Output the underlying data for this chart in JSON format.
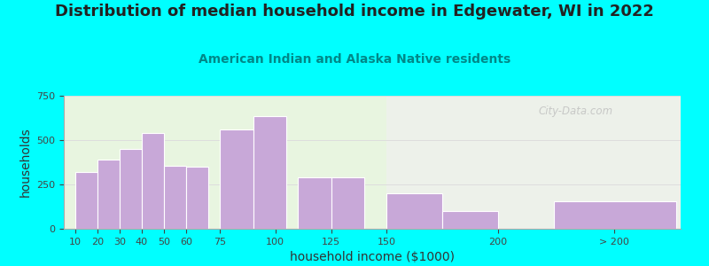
{
  "title": "Distribution of median household income in Edgewater, WI in 2022",
  "subtitle": "American Indian and Alaska Native residents",
  "xlabel": "household income ($1000)",
  "ylabel": "households",
  "bar_values": [
    320,
    390,
    450,
    540,
    355,
    350,
    560,
    635,
    290,
    290,
    200,
    100,
    155
  ],
  "bar_lefts": [
    10,
    20,
    30,
    40,
    50,
    60,
    75,
    90,
    110,
    125,
    150,
    175,
    225
  ],
  "bar_widths": [
    10,
    10,
    10,
    10,
    10,
    10,
    15,
    15,
    15,
    15,
    25,
    25,
    55
  ],
  "bar_color": "#C8A8D8",
  "bar_edgecolor": "#ffffff",
  "ylim": [
    0,
    750
  ],
  "yticks": [
    0,
    250,
    500,
    750
  ],
  "xlim_left": 5,
  "xlim_right": 282,
  "bg_outer": "#00FFFF",
  "bg_plot": "#E8F5E0",
  "title_fontsize": 13,
  "title_color": "#222222",
  "subtitle_fontsize": 10,
  "subtitle_color": "#008888",
  "axis_label_fontsize": 10,
  "tick_fontsize": 8,
  "watermark": "City-Data.com",
  "xtick_positions": [
    10,
    20,
    30,
    40,
    50,
    60,
    75,
    100,
    125,
    150,
    200,
    252
  ],
  "xtick_labels": [
    "10",
    "20",
    "30",
    "40",
    "50",
    "60",
    "75",
    "100",
    "125",
    "150",
    "200",
    "> 200"
  ]
}
